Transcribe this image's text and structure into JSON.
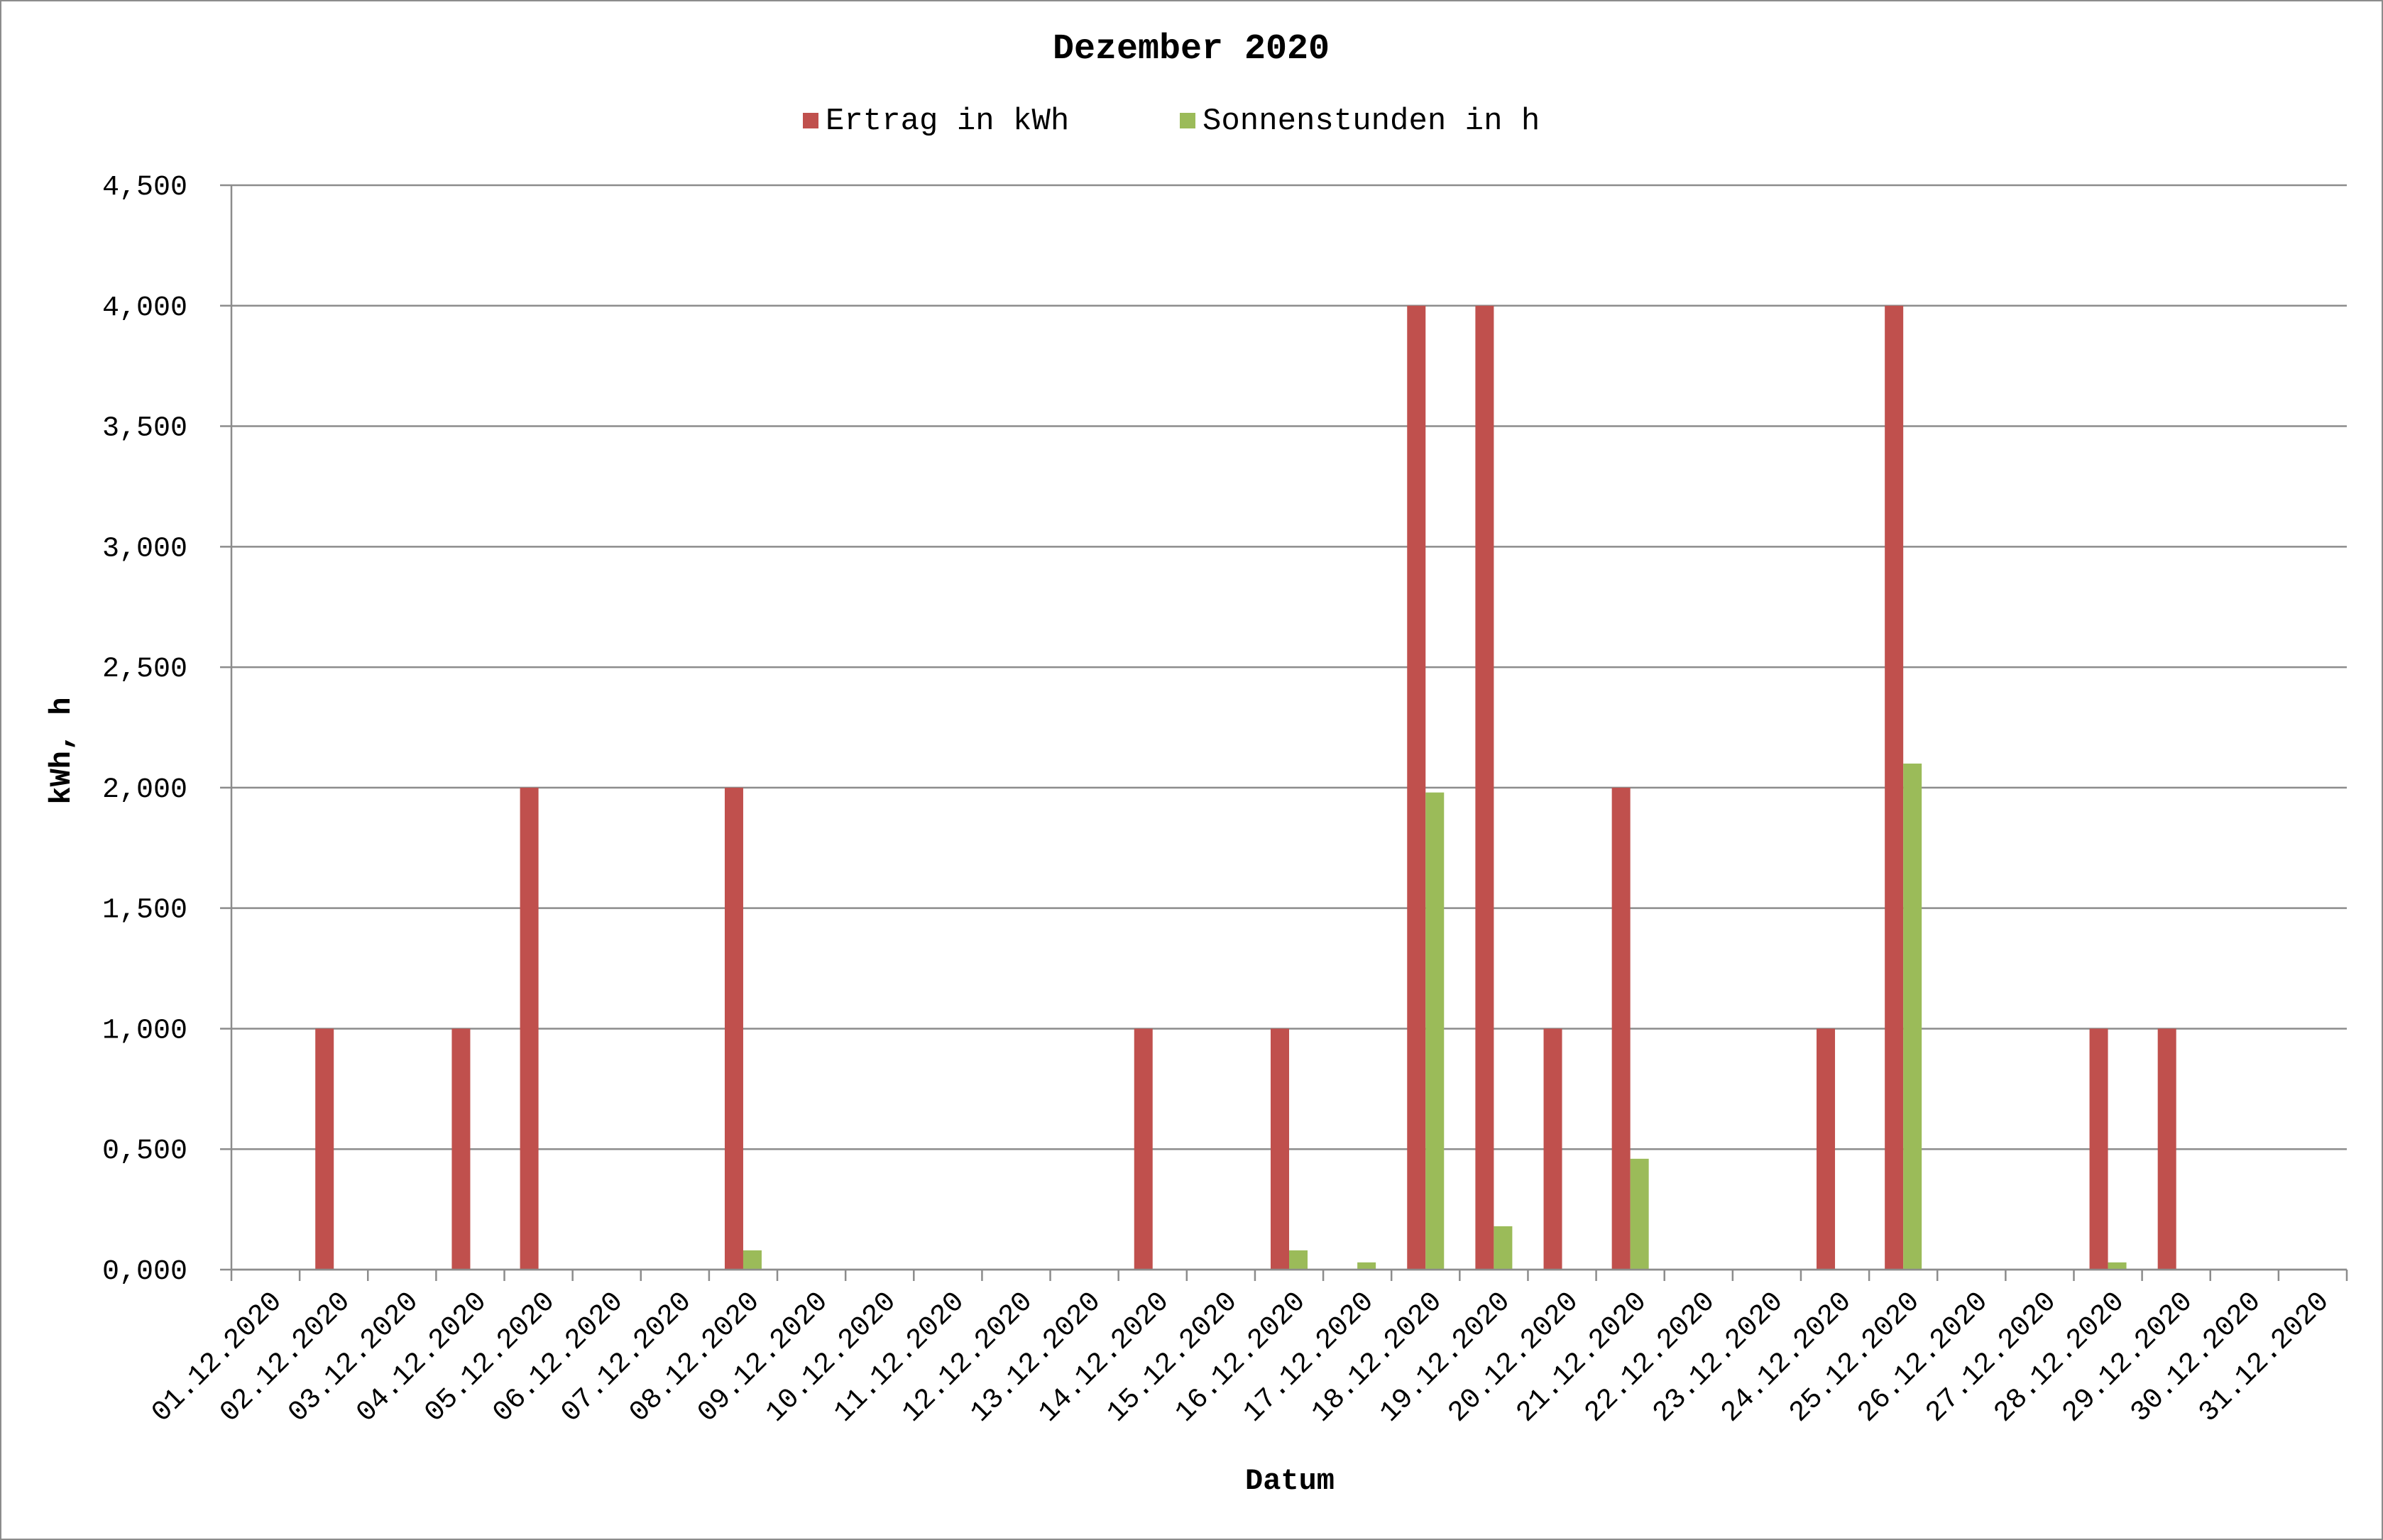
{
  "chart_data": {
    "type": "bar",
    "title": "Dezember 2020",
    "xlabel": "Datum",
    "ylabel": "kWh, h",
    "ylim": [
      0,
      4.5
    ],
    "yticks": [
      0,
      0.5,
      1.0,
      1.5,
      2.0,
      2.5,
      3.0,
      3.5,
      4.0,
      4.5
    ],
    "ytick_labels": [
      "0,000",
      "0,500",
      "1,000",
      "1,500",
      "2,000",
      "2,500",
      "3,000",
      "3,500",
      "4,000",
      "4,500"
    ],
    "grid": true,
    "legend_position": "top",
    "categories": [
      "01.12.2020",
      "02.12.2020",
      "03.12.2020",
      "04.12.2020",
      "05.12.2020",
      "06.12.2020",
      "07.12.2020",
      "08.12.2020",
      "09.12.2020",
      "10.12.2020",
      "11.12.2020",
      "12.12.2020",
      "13.12.2020",
      "14.12.2020",
      "15.12.2020",
      "16.12.2020",
      "17.12.2020",
      "18.12.2020",
      "19.12.2020",
      "20.12.2020",
      "21.12.2020",
      "22.12.2020",
      "23.12.2020",
      "24.12.2020",
      "25.12.2020",
      "26.12.2020",
      "27.12.2020",
      "28.12.2020",
      "29.12.2020",
      "30.12.2020",
      "31.12.2020"
    ],
    "series": [
      {
        "name": "Ertrag in kWh",
        "color": "#c0504d",
        "values": [
          0,
          1,
          0,
          1,
          2,
          0,
          0,
          2,
          0,
          0,
          0,
          0,
          0,
          1,
          0,
          1,
          0,
          4,
          4,
          1,
          2,
          0,
          0,
          1,
          4,
          0,
          0,
          1,
          1,
          0,
          0
        ]
      },
      {
        "name": "Sonnenstunden in h",
        "color": "#9bbb59",
        "values": [
          0,
          0,
          0,
          0,
          0,
          0,
          0,
          0.08,
          0,
          0,
          0,
          0,
          0,
          0,
          0,
          0.08,
          0.03,
          1.98,
          0.18,
          0,
          0.46,
          0,
          0,
          0,
          2.1,
          0,
          0,
          0.03,
          0,
          0,
          0
        ]
      }
    ]
  }
}
